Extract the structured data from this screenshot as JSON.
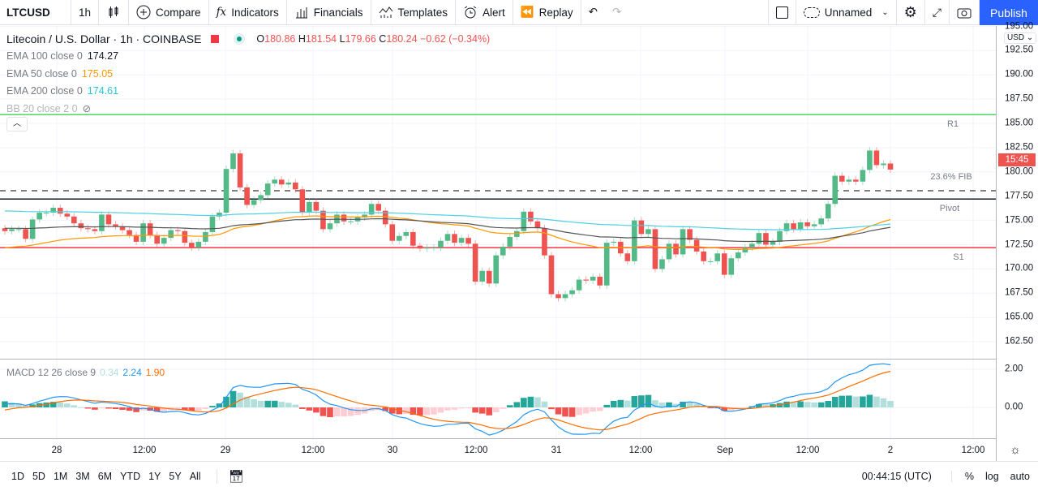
{
  "toolbar": {
    "symbol": "LTCUSD",
    "interval": "1h",
    "compare": "Compare",
    "indicators": "Indicators",
    "financials": "Financials",
    "templates": "Templates",
    "alert": "Alert",
    "replay": "Replay",
    "layout_name": "Unnamed",
    "publish": "Publish"
  },
  "legend": {
    "title": "Litecoin / U.S. Dollar · 1h · COINBASE",
    "o_label": "O",
    "o": "180.86",
    "h_label": "H",
    "h": "181.54",
    "l_label": "L",
    "l": "179.66",
    "c_label": "C",
    "c": "180.24",
    "change": "−0.62 (−0.34%)",
    "ema100_label": "EMA 100 close 0",
    "ema100": "174.27",
    "ema50_label": "EMA 50 close 0",
    "ema50": "175.05",
    "ema200_label": "EMA 200 close 0",
    "ema200": "174.61",
    "bb_label": "BB 20 close 2 0"
  },
  "macd": {
    "label": "MACD 12 26 close 9",
    "hist": "0.34",
    "macd": "2.24",
    "signal": "1.90"
  },
  "price_axis": {
    "currency": "USD",
    "ticks": [
      "195.00",
      "192.50",
      "190.00",
      "187.50",
      "185.00",
      "182.50",
      "180.00",
      "177.50",
      "175.00",
      "172.50",
      "170.00",
      "167.50",
      "165.00",
      "162.50"
    ],
    "price_label": "15:45",
    "macd_ticks": [
      "2.00",
      "0.00"
    ]
  },
  "levels": [
    {
      "name": "R1",
      "price": 185.9,
      "color": "#4cd964"
    },
    {
      "name": "23.6% FIB",
      "price": 178.06,
      "color": "#555555",
      "dashed": true
    },
    {
      "name": "Pivot",
      "price": 177.2,
      "color": "#131722"
    },
    {
      "name": "S1",
      "price": 172.2,
      "color": "#f23645"
    }
  ],
  "time_axis": [
    "28",
    "12:00",
    "29",
    "12:00",
    "30",
    "12:00",
    "31",
    "12:00",
    "Sep",
    "12:00",
    "2",
    "12:00"
  ],
  "bottom": {
    "ranges": [
      "1D",
      "5D",
      "1M",
      "3M",
      "6M",
      "YTD",
      "1Y",
      "5Y",
      "All"
    ],
    "clock": "00:44:15 (UTC)",
    "percent": "%",
    "log": "log",
    "auto": "auto"
  },
  "colors": {
    "up": "#26a69a",
    "up_candle": "#53b987",
    "down": "#ef5350",
    "ema50": "#ff9800",
    "ema100": "#555555",
    "ema200": "#4dd0e1",
    "macd": "#2196f3",
    "signal": "#ff6d00",
    "accent": "#2962ff"
  },
  "chart_data": {
    "type": "candlestick",
    "ylim": [
      161,
      195
    ],
    "closes": [
      173.9,
      174.1,
      174.1,
      173.1,
      175.1,
      175.8,
      175.8,
      176.3,
      175.7,
      175.4,
      174.7,
      174.2,
      174.1,
      173.9,
      175.6,
      174.6,
      174.4,
      174.0,
      173.5,
      172.8,
      174.7,
      173.5,
      172.6,
      173.2,
      174.0,
      173.9,
      172.7,
      172.2,
      172.8,
      173.8,
      175.4,
      175.8,
      180.3,
      181.9,
      178.4,
      176.6,
      177.1,
      177.6,
      178.8,
      179.2,
      178.7,
      178.9,
      178.2,
      175.8,
      176.9,
      176.0,
      174.1,
      174.7,
      175.6,
      174.9,
      174.9,
      175.3,
      175.6,
      176.7,
      176.0,
      174.6,
      172.9,
      173.4,
      173.8,
      172.4,
      172.1,
      172.2,
      172.2,
      172.9,
      173.6,
      172.7,
      173.2,
      172.6,
      168.7,
      169.8,
      168.5,
      171.4,
      172.3,
      173.3,
      173.9,
      175.9,
      174.9,
      174.2,
      171.4,
      167.4,
      167.0,
      167.4,
      167.8,
      168.9,
      168.8,
      169.2,
      168.3,
      172.7,
      172.8,
      171.6,
      170.8,
      175.0,
      173.6,
      174.1,
      170.0,
      171.0,
      172.6,
      171.5,
      174.1,
      173.0,
      171.8,
      170.8,
      170.8,
      171.6,
      169.4,
      171.1,
      171.7,
      172.2,
      172.6,
      173.7,
      172.5,
      172.8,
      173.9,
      174.7,
      174.1,
      174.8,
      174.4,
      174.6,
      175.2,
      176.7,
      179.6,
      179.0,
      179.2,
      179.0,
      180.2,
      182.2,
      180.7,
      180.86,
      180.24
    ]
  }
}
